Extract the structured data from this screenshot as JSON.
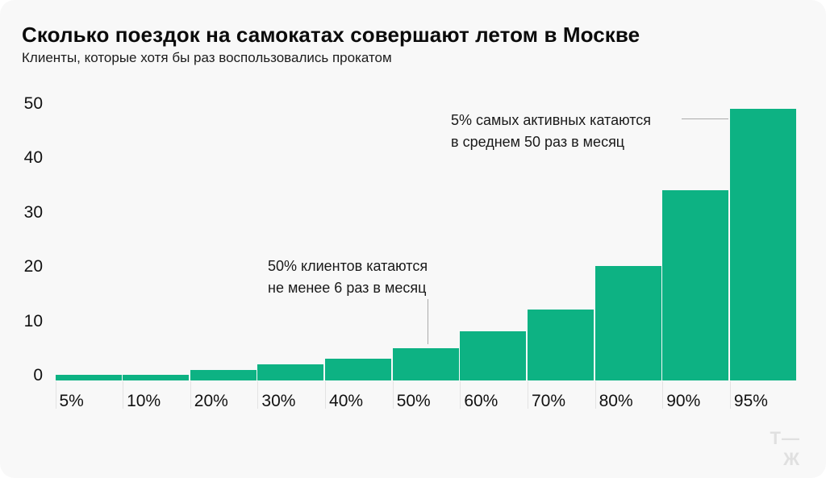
{
  "card": {
    "title": "Сколько поездок на самокатах совершают летом в Москве",
    "subtitle": "Клиенты, которые хотя бы раз воспользовались прокатом",
    "logo": "Т—Ж"
  },
  "colors": {
    "bar": "#0db283",
    "card_background": "#f8f8f8",
    "connector_line": "#ababab",
    "axis_tick": "#e3e3e3",
    "logo": "#e0e0e0"
  },
  "chart_data": {
    "type": "bar",
    "title": "Сколько поездок на самокатах совершают летом в Москве",
    "subtitle": "Клиенты, которые хотя бы раз воспользовались прокатом",
    "categories": [
      "5%",
      "10%",
      "20%",
      "30%",
      "40%",
      "50%",
      "60%",
      "70%",
      "80%",
      "90%",
      "95%"
    ],
    "values": [
      1,
      1,
      2,
      3,
      4,
      6,
      9,
      13,
      21,
      35,
      50
    ],
    "xlabel": "",
    "ylabel": "",
    "y_ticks": [
      0,
      10,
      20,
      30,
      40,
      50
    ],
    "ylim": [
      0,
      50
    ],
    "grid": false,
    "legend": false,
    "bar_color": "#0db283",
    "annotations": [
      {
        "line1": "5% самых активных катаются",
        "line2": "в среднем 50 раз в месяц",
        "target_category": "95%",
        "connector": "horizontal"
      },
      {
        "line1": "50% клиентов катаются",
        "line2": "не менее 6 раз в месяц",
        "target_category": "50%",
        "connector": "vertical"
      }
    ]
  }
}
